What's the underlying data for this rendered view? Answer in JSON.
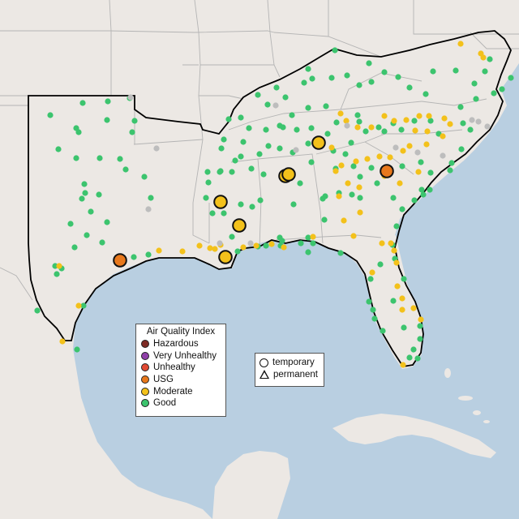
{
  "map": {
    "colors": {
      "land": "#ece8e4",
      "water": "#b9cfe1",
      "border": "#b4b4b4",
      "region_outline": "#000000"
    }
  },
  "legend": {
    "title": "Air Quality Index",
    "categories": [
      {
        "label": "Hazardous",
        "color": "#7e2b24"
      },
      {
        "label": "Very Unhealthy",
        "color": "#8f3fa8"
      },
      {
        "label": "Unhealthy",
        "color": "#e24a33"
      },
      {
        "label": "USG",
        "color": "#e8781c"
      },
      {
        "label": "Moderate",
        "color": "#f3c11b"
      },
      {
        "label": "Good",
        "color": "#3cc46e"
      }
    ],
    "unreported_color": "#bdbdbd"
  },
  "monitor_types": {
    "temporary": "temporary",
    "permanent": "permanent"
  },
  "chart_data": {
    "type": "scatter",
    "description_of_values": "Air quality monitor locations (longitude, latitude) with AQI category",
    "large_markers": [
      {
        "lon": -95.1,
        "lat": 29.7,
        "category": "USG"
      },
      {
        "lon": -81.2,
        "lat": 33.3,
        "category": "USG"
      },
      {
        "lon": -91.9,
        "lat": 32.4,
        "category": "Moderate"
      },
      {
        "lon": -90.2,
        "lat": 31.7,
        "category": "Moderate"
      },
      {
        "lon": -90.6,
        "lat": 30.0,
        "category": "Moderate"
      },
      {
        "lon": -86.8,
        "lat": 33.5,
        "category": "Moderate"
      },
      {
        "lon": -86.6,
        "lat": 33.6,
        "category": "Moderate"
      },
      {
        "lon": -84.4,
        "lat": 34.3,
        "category": "Moderate"
      }
    ]
  }
}
